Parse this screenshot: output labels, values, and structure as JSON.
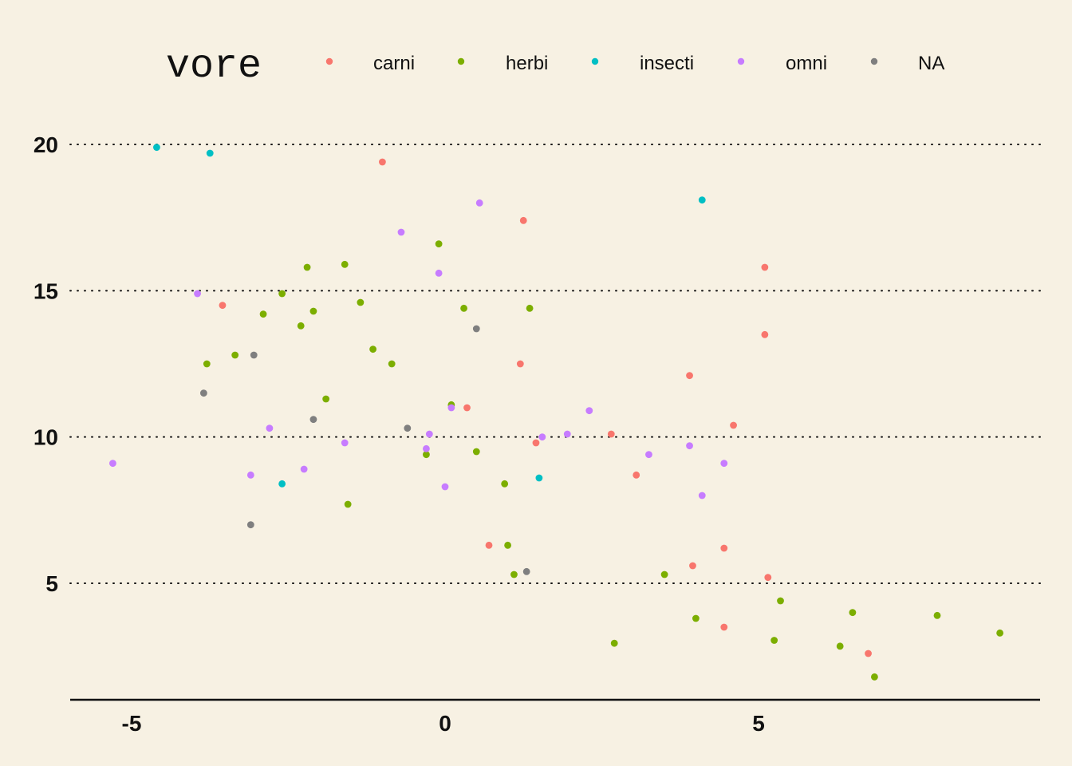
{
  "chart_data": {
    "type": "scatter",
    "title": "",
    "xlabel": "",
    "ylabel": "",
    "xlim": [
      -6.2,
      9.3
    ],
    "ylim": [
      1.2,
      21.2
    ],
    "x_ticks": [
      -5,
      0,
      5
    ],
    "y_ticks": [
      5,
      10,
      15,
      20
    ],
    "x_tick_labels": [
      "-5",
      "0",
      "5"
    ],
    "y_tick_labels": [
      "5",
      "10",
      "15",
      "20"
    ],
    "grid": "horizontal dotted major lines",
    "legend": {
      "title": "vore",
      "placement": "top"
    },
    "series": [
      {
        "name": "carni",
        "color": "#f8766d",
        "points": [
          {
            "x": -3.55,
            "y": 14.5
          },
          {
            "x": -1.0,
            "y": 19.4
          },
          {
            "x": 0.35,
            "y": 11.0
          },
          {
            "x": 0.7,
            "y": 6.3
          },
          {
            "x": 1.2,
            "y": 12.5
          },
          {
            "x": 1.25,
            "y": 17.4
          },
          {
            "x": 1.45,
            "y": 9.8
          },
          {
            "x": 2.65,
            "y": 10.1
          },
          {
            "x": 3.05,
            "y": 8.7
          },
          {
            "x": 3.9,
            "y": 12.1
          },
          {
            "x": 3.95,
            "y": 5.6
          },
          {
            "x": 4.45,
            "y": 6.2
          },
          {
            "x": 4.45,
            "y": 3.5
          },
          {
            "x": 4.6,
            "y": 10.4
          },
          {
            "x": 5.1,
            "y": 15.8
          },
          {
            "x": 5.1,
            "y": 13.5
          },
          {
            "x": 5.15,
            "y": 5.2
          },
          {
            "x": 6.75,
            "y": 2.6
          }
        ]
      },
      {
        "name": "herbi",
        "color": "#7cae00",
        "points": [
          {
            "x": -3.8,
            "y": 12.5
          },
          {
            "x": -3.35,
            "y": 12.8
          },
          {
            "x": -2.9,
            "y": 14.2
          },
          {
            "x": -2.6,
            "y": 14.9
          },
          {
            "x": -2.3,
            "y": 13.8
          },
          {
            "x": -2.2,
            "y": 15.8
          },
          {
            "x": -2.1,
            "y": 14.3
          },
          {
            "x": -1.9,
            "y": 11.3
          },
          {
            "x": -1.6,
            "y": 15.9
          },
          {
            "x": -1.55,
            "y": 7.7
          },
          {
            "x": -1.35,
            "y": 14.6
          },
          {
            "x": -1.15,
            "y": 13.0
          },
          {
            "x": -0.85,
            "y": 12.5
          },
          {
            "x": -0.3,
            "y": 9.4
          },
          {
            "x": -0.1,
            "y": 16.6
          },
          {
            "x": 0.1,
            "y": 11.1
          },
          {
            "x": 0.3,
            "y": 14.4
          },
          {
            "x": 0.5,
            "y": 9.5
          },
          {
            "x": 0.95,
            "y": 8.4
          },
          {
            "x": 1.0,
            "y": 6.3
          },
          {
            "x": 1.1,
            "y": 5.3
          },
          {
            "x": 1.35,
            "y": 14.4
          },
          {
            "x": 2.7,
            "y": 2.95
          },
          {
            "x": 3.5,
            "y": 5.3
          },
          {
            "x": 4.0,
            "y": 3.8
          },
          {
            "x": 5.25,
            "y": 3.05
          },
          {
            "x": 5.35,
            "y": 4.4
          },
          {
            "x": 6.3,
            "y": 2.85
          },
          {
            "x": 6.5,
            "y": 4.0
          },
          {
            "x": 6.85,
            "y": 1.8
          },
          {
            "x": 7.85,
            "y": 3.9
          },
          {
            "x": 8.85,
            "y": 3.3
          }
        ]
      },
      {
        "name": "insecti",
        "color": "#00bfc4",
        "points": [
          {
            "x": -4.6,
            "y": 19.9
          },
          {
            "x": -3.75,
            "y": 19.7
          },
          {
            "x": -2.6,
            "y": 8.4
          },
          {
            "x": 1.5,
            "y": 8.6
          },
          {
            "x": 4.1,
            "y": 18.1
          }
        ]
      },
      {
        "name": "omni",
        "color": "#c77cff",
        "points": [
          {
            "x": -5.3,
            "y": 9.1
          },
          {
            "x": -3.95,
            "y": 14.9
          },
          {
            "x": -3.1,
            "y": 8.7
          },
          {
            "x": -2.8,
            "y": 10.3
          },
          {
            "x": -2.25,
            "y": 8.9
          },
          {
            "x": -1.6,
            "y": 9.8
          },
          {
            "x": -0.7,
            "y": 17.0
          },
          {
            "x": -0.3,
            "y": 9.6
          },
          {
            "x": -0.25,
            "y": 10.1
          },
          {
            "x": -0.1,
            "y": 15.6
          },
          {
            "x": 0.0,
            "y": 8.3
          },
          {
            "x": 0.1,
            "y": 11.0
          },
          {
            "x": 0.55,
            "y": 18.0
          },
          {
            "x": 1.55,
            "y": 10.0
          },
          {
            "x": 1.95,
            "y": 10.1
          },
          {
            "x": 2.3,
            "y": 10.9
          },
          {
            "x": 3.25,
            "y": 9.4
          },
          {
            "x": 3.9,
            "y": 9.7
          },
          {
            "x": 4.1,
            "y": 8.0
          },
          {
            "x": 4.45,
            "y": 9.1
          }
        ]
      },
      {
        "name": "NA",
        "color": "#7f7f7f",
        "points": [
          {
            "x": -3.85,
            "y": 11.5
          },
          {
            "x": -3.05,
            "y": 12.8
          },
          {
            "x": -3.1,
            "y": 7.0
          },
          {
            "x": -2.1,
            "y": 10.6
          },
          {
            "x": -0.6,
            "y": 10.3
          },
          {
            "x": 0.5,
            "y": 13.7
          },
          {
            "x": 1.3,
            "y": 5.4
          }
        ]
      }
    ]
  }
}
